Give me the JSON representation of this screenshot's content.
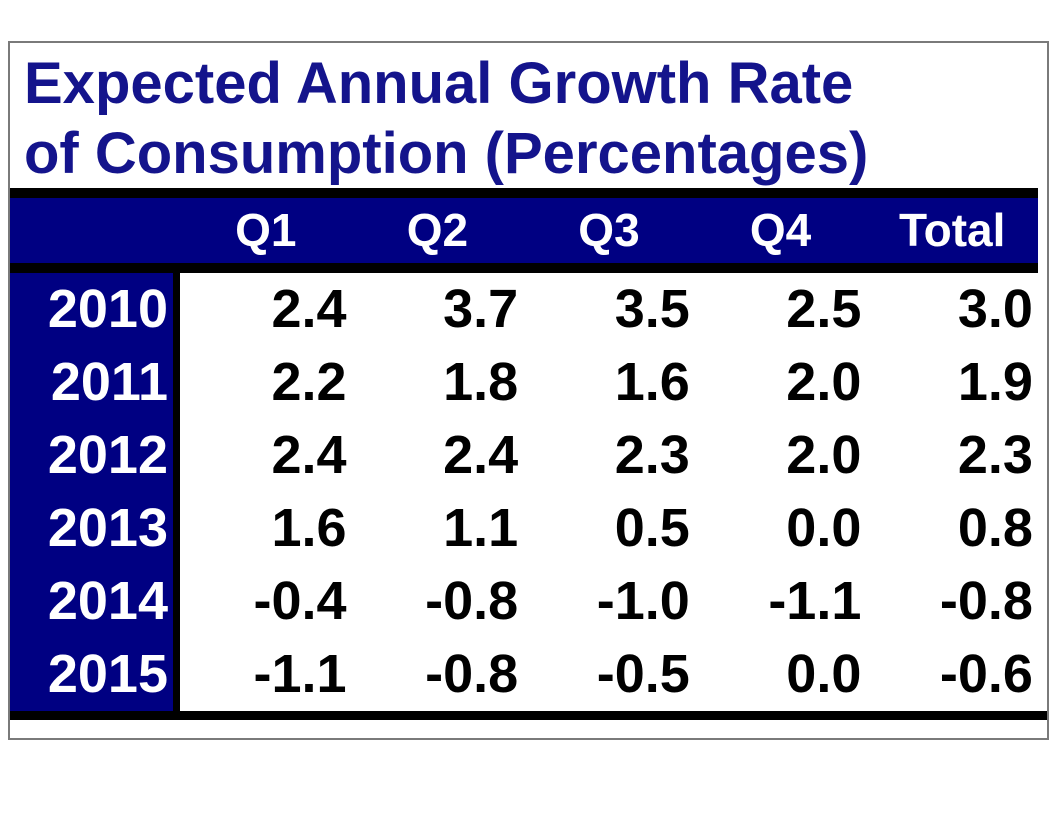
{
  "table": {
    "title": "Expected Annual Growth Rate of Consumption (Percentages)",
    "columns": [
      "Q1",
      "Q2",
      "Q3",
      "Q4",
      "Total"
    ],
    "rows": [
      {
        "year": "2010",
        "values": [
          "2.4",
          "3.7",
          "3.5",
          "2.5",
          "3.0"
        ]
      },
      {
        "year": "2011",
        "values": [
          "2.2",
          "1.8",
          "1.6",
          "2.0",
          "1.9"
        ]
      },
      {
        "year": "2012",
        "values": [
          "2.4",
          "2.4",
          "2.3",
          "2.0",
          "2.3"
        ]
      },
      {
        "year": "2013",
        "values": [
          "1.6",
          "1.1",
          "0.5",
          "0.0",
          "0.8"
        ]
      },
      {
        "year": "2014",
        "values": [
          "-0.4",
          "-0.8",
          "-1.0",
          "-1.1",
          "-0.8"
        ]
      },
      {
        "year": "2015",
        "values": [
          "-1.1",
          "-0.8",
          "-0.5",
          "0.0",
          "-0.6"
        ]
      }
    ]
  },
  "chart_data": {
    "type": "table",
    "title": "Expected Annual Growth Rate of Consumption (Percentages)",
    "columns": [
      "Q1",
      "Q2",
      "Q3",
      "Q4",
      "Total"
    ],
    "row_labels": [
      "2010",
      "2011",
      "2012",
      "2013",
      "2014",
      "2015"
    ],
    "values": [
      [
        2.4,
        3.7,
        3.5,
        2.5,
        3.0
      ],
      [
        2.2,
        1.8,
        1.6,
        2.0,
        1.9
      ],
      [
        2.4,
        2.4,
        2.3,
        2.0,
        2.3
      ],
      [
        1.6,
        1.1,
        0.5,
        0.0,
        0.8
      ],
      [
        -0.4,
        -0.8,
        -1.0,
        -1.1,
        -0.8
      ],
      [
        -1.1,
        -0.8,
        -0.5,
        0.0,
        -0.6
      ]
    ],
    "unit": "percent"
  },
  "colors": {
    "navy": "#000082",
    "title_text": "#14148c",
    "separator": "#000000",
    "frame_border": "#7a7a7a",
    "header_text": "#ffffff",
    "value_text": "#000000"
  }
}
